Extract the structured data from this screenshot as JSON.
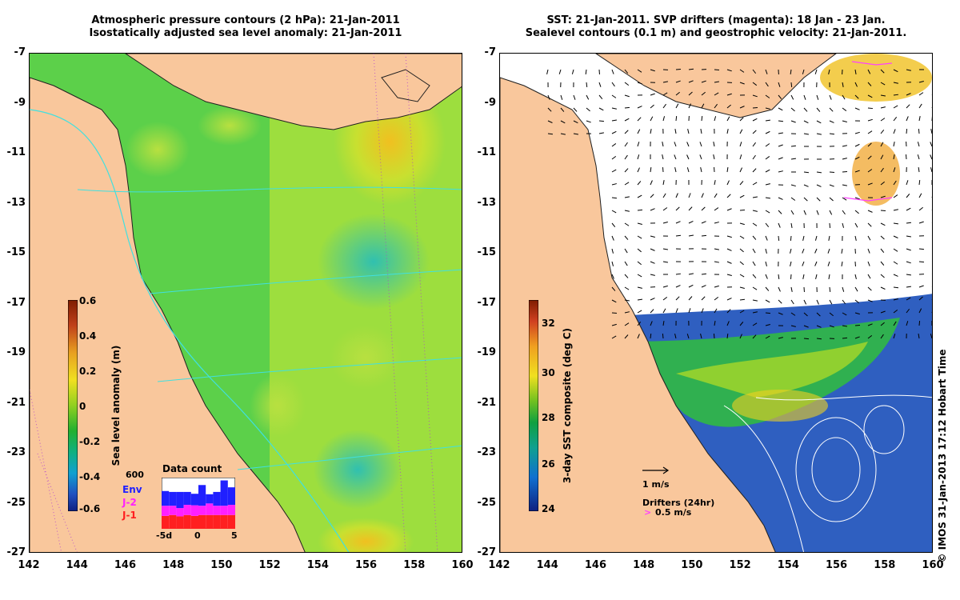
{
  "left_panel": {
    "title_line1": "Atmospheric pressure contours (2 hPa): 21-Jan-2011",
    "title_line2": "Isostatically adjusted sea level anomaly: 21-Jan-2011",
    "colorbar": {
      "label": "Sea level anomaly (m)",
      "ticks": [
        "0.6",
        "0.4",
        "0.2",
        "0",
        "-0.2",
        "-0.4",
        "-0.6"
      ],
      "colors": [
        "#7f1d00",
        "#c0401a",
        "#e8a020",
        "#f0e020",
        "#90d020",
        "#20b030",
        "#10b080",
        "#10a0d0",
        "#2050c0",
        "#102080"
      ]
    },
    "data_count": {
      "title": "Data count",
      "y_max": "600",
      "legend": [
        {
          "label": "Env",
          "color": "#2020ff"
        },
        {
          "label": "J-2",
          "color": "#ff20ff"
        },
        {
          "label": "J-1",
          "color": "#ff2020"
        }
      ],
      "x_ticks": [
        "-5d",
        "0",
        "5"
      ],
      "bars": [
        {
          "env": 0.32,
          "j2": 0.22,
          "j1": 0.28
        },
        {
          "env": 0.3,
          "j2": 0.2,
          "j1": 0.3
        },
        {
          "env": 0.35,
          "j2": 0.18,
          "j1": 0.27
        },
        {
          "env": 0.28,
          "j2": 0.22,
          "j1": 0.3
        },
        {
          "env": 0.25,
          "j2": 0.23,
          "j1": 0.28
        },
        {
          "env": 0.45,
          "j2": 0.2,
          "j1": 0.3
        },
        {
          "env": 0.2,
          "j2": 0.25,
          "j1": 0.3
        },
        {
          "env": 0.3,
          "j2": 0.2,
          "j1": 0.3
        },
        {
          "env": 0.55,
          "j2": 0.2,
          "j1": 0.3
        },
        {
          "env": 0.38,
          "j2": 0.22,
          "j1": 0.3
        }
      ]
    }
  },
  "right_panel": {
    "title_line1": "SST: 21-Jan-2011. SVP drifters (magenta): 18 Jan - 23 Jan.",
    "title_line2": "Sealevel contours (0.1 m) and geostrophic velocity: 21-Jan-2011.",
    "colorbar": {
      "label": "3-day SST composite (deg C)",
      "ticks": [
        "32",
        "30",
        "28",
        "26",
        "24"
      ],
      "colors": [
        "#7f1d00",
        "#d04020",
        "#f0a020",
        "#f0e020",
        "#70c020",
        "#10a040",
        "#10a090",
        "#1070d0",
        "#102080"
      ]
    },
    "velocity_key": "1 m/s",
    "drifters_key": "Drifters (24hr)",
    "drifters_speed": "0.5 m/s"
  },
  "axes": {
    "latitudes": [
      "-7",
      "-9",
      "-11",
      "-13",
      "-15",
      "-17",
      "-19",
      "-21",
      "-23",
      "-25",
      "-27"
    ],
    "longitudes": [
      "142",
      "144",
      "146",
      "148",
      "150",
      "152",
      "154",
      "156",
      "158",
      "160"
    ]
  },
  "credit": "© IMOS 31-Jan-2013 17:12 Hobart Time",
  "colors": {
    "land": "#f9c79c",
    "sla_green": "#3cc83c",
    "sla_yellow": "#c8e83c",
    "sla_cyan": "#40c8a0",
    "sst_blue": "#1f4fb0",
    "sst_green": "#30b050",
    "contour_cyan": "#40e0e0",
    "drifter_magenta": "#ff40ff"
  }
}
